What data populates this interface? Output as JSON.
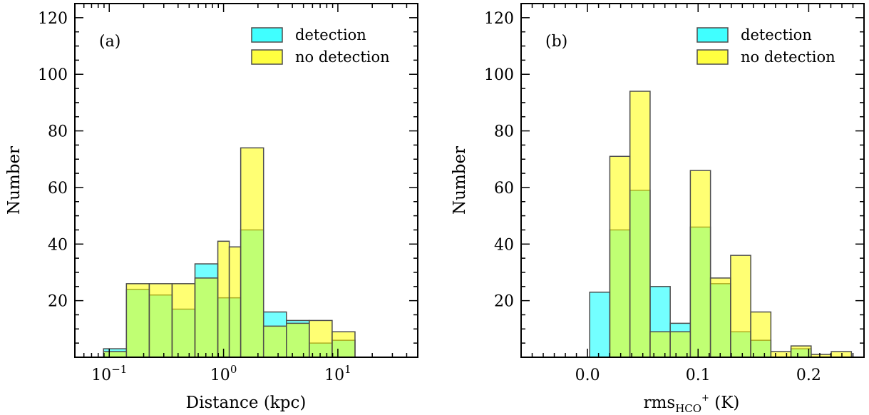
{
  "colors": {
    "detection": "#00ffff",
    "no_detection": "#ffff00",
    "bar_alpha": 0.55,
    "edge": "#4d4d4d"
  },
  "chart_data": [
    {
      "type": "bar",
      "panel_label": "(a)",
      "xlabel": "Distance (kpc)",
      "ylabel": "Number",
      "xscale": "log",
      "xlim": [
        0.05,
        50
      ],
      "ylim": [
        0,
        125
      ],
      "x_ticks": [
        {
          "value": 0.1,
          "base": "10",
          "exp": "−1"
        },
        {
          "value": 1,
          "base": "10",
          "exp": "0"
        },
        {
          "value": 10,
          "base": "10",
          "exp": "1"
        }
      ],
      "y_ticks": [
        20,
        40,
        60,
        80,
        100,
        120
      ],
      "legend": [
        "detection",
        "no detection"
      ],
      "legend_position": "top-right",
      "bin_edges": [
        0.0891,
        0.1413,
        0.2239,
        0.3548,
        0.5623,
        0.8913,
        1.4125,
        2.2387,
        3.5481,
        5.6234,
        8.9125,
        14.125
      ],
      "series": [
        {
          "name": "detection",
          "values": [
            3,
            24,
            22,
            17,
            33,
            21,
            45,
            16,
            13,
            5,
            6
          ]
        },
        {
          "name": "no detection",
          "values": [
            2,
            26,
            26,
            26,
            28,
            41,
            39,
            74,
            11,
            12,
            13,
            9,
            1
          ]
        }
      ],
      "series_bins": [
        [
          0.0891,
          0.1413,
          0.2239,
          0.3548,
          0.5623,
          0.8913,
          1.4125,
          2.2387,
          3.5481,
          5.6234,
          8.9125,
          14.125
        ],
        [
          0.0891,
          0.1413,
          0.2239,
          0.3548,
          0.5623,
          0.8913,
          1.122,
          1.4125,
          2.2387,
          3.5481,
          5.6234,
          8.9125,
          14.125
        ]
      ]
    },
    {
      "type": "bar",
      "panel_label": "(b)",
      "xlabel_main": "rms",
      "xlabel_sub": "HCO",
      "xlabel_sup": "+",
      "xlabel_unit": " (K)",
      "ylabel": "Number",
      "xscale": "linear",
      "xlim": [
        -0.06,
        0.25
      ],
      "ylim": [
        0,
        125
      ],
      "x_ticks": [
        {
          "value": 0.0,
          "label": "0.0"
        },
        {
          "value": 0.1,
          "label": "0.1"
        },
        {
          "value": 0.2,
          "label": "0.2"
        }
      ],
      "y_ticks": [
        20,
        40,
        60,
        80,
        100,
        120
      ],
      "legend": [
        "detection",
        "no detection"
      ],
      "legend_position": "top-right",
      "bin_edges": [
        0.002,
        0.0202,
        0.0384,
        0.0566,
        0.0748,
        0.093,
        0.1112,
        0.1294,
        0.1476,
        0.1658,
        0.184,
        0.2022,
        0.2204,
        0.2386
      ],
      "series": [
        {
          "name": "detection",
          "values": [
            23,
            45,
            59,
            25,
            12,
            46,
            26,
            9,
            6,
            0,
            3,
            0,
            0
          ]
        },
        {
          "name": "no detection",
          "values": [
            0,
            71,
            94,
            9,
            9,
            66,
            28,
            36,
            16,
            2,
            4,
            1,
            2
          ]
        }
      ]
    }
  ]
}
